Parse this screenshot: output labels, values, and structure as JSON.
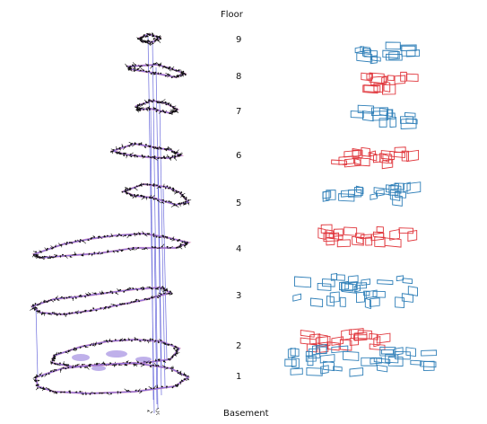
{
  "diagram": {
    "top_label": "Floor",
    "bottom_label": "Basement",
    "floor_labels": [
      "9",
      "8",
      "7",
      "6",
      "5",
      "4",
      "3",
      "2",
      "1"
    ],
    "colors": {
      "graph_edges": "#111111",
      "graph_nodes": "#8a6fd8",
      "vertical_links": "#6b6bdc",
      "outline_blue": "#2f7fb8",
      "outline_red": "#e0363c",
      "floor_tint": "#d77aa9"
    }
  }
}
